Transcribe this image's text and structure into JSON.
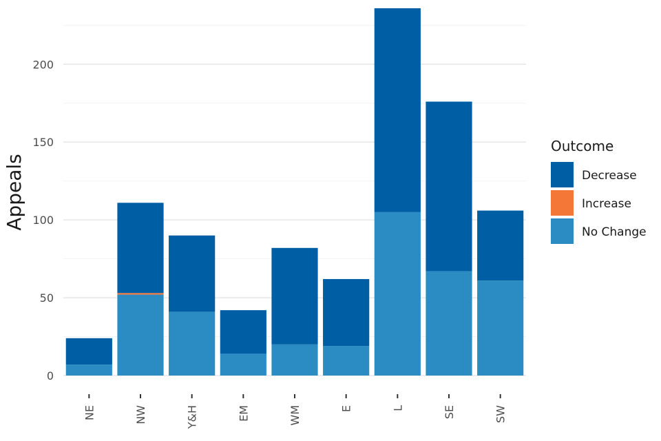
{
  "chart_data": {
    "type": "bar",
    "stacked": true,
    "title": "",
    "xlabel": "",
    "ylabel": "Appeals",
    "ylim": [
      0,
      236
    ],
    "yticks": [
      0,
      50,
      100,
      150,
      200
    ],
    "grid": true,
    "legend_position": "right",
    "legend_title": "Outcome",
    "categories": [
      "NE",
      "NW",
      "Y&H",
      "EM",
      "WM",
      "E",
      "L",
      "SE",
      "SW"
    ],
    "series": [
      {
        "name": "No Change",
        "color": "#2b8cc4",
        "values": [
          7,
          52,
          41,
          14,
          20,
          19,
          105,
          67,
          61
        ]
      },
      {
        "name": "Increase",
        "color": "#f47738",
        "values": [
          0,
          1,
          0,
          0,
          0,
          0,
          0,
          0,
          0
        ]
      },
      {
        "name": "Decrease",
        "color": "#005ea5",
        "values": [
          17,
          58,
          49,
          28,
          62,
          43,
          131,
          109,
          45
        ]
      }
    ],
    "legend_order": [
      "Decrease",
      "Increase",
      "No Change"
    ]
  }
}
